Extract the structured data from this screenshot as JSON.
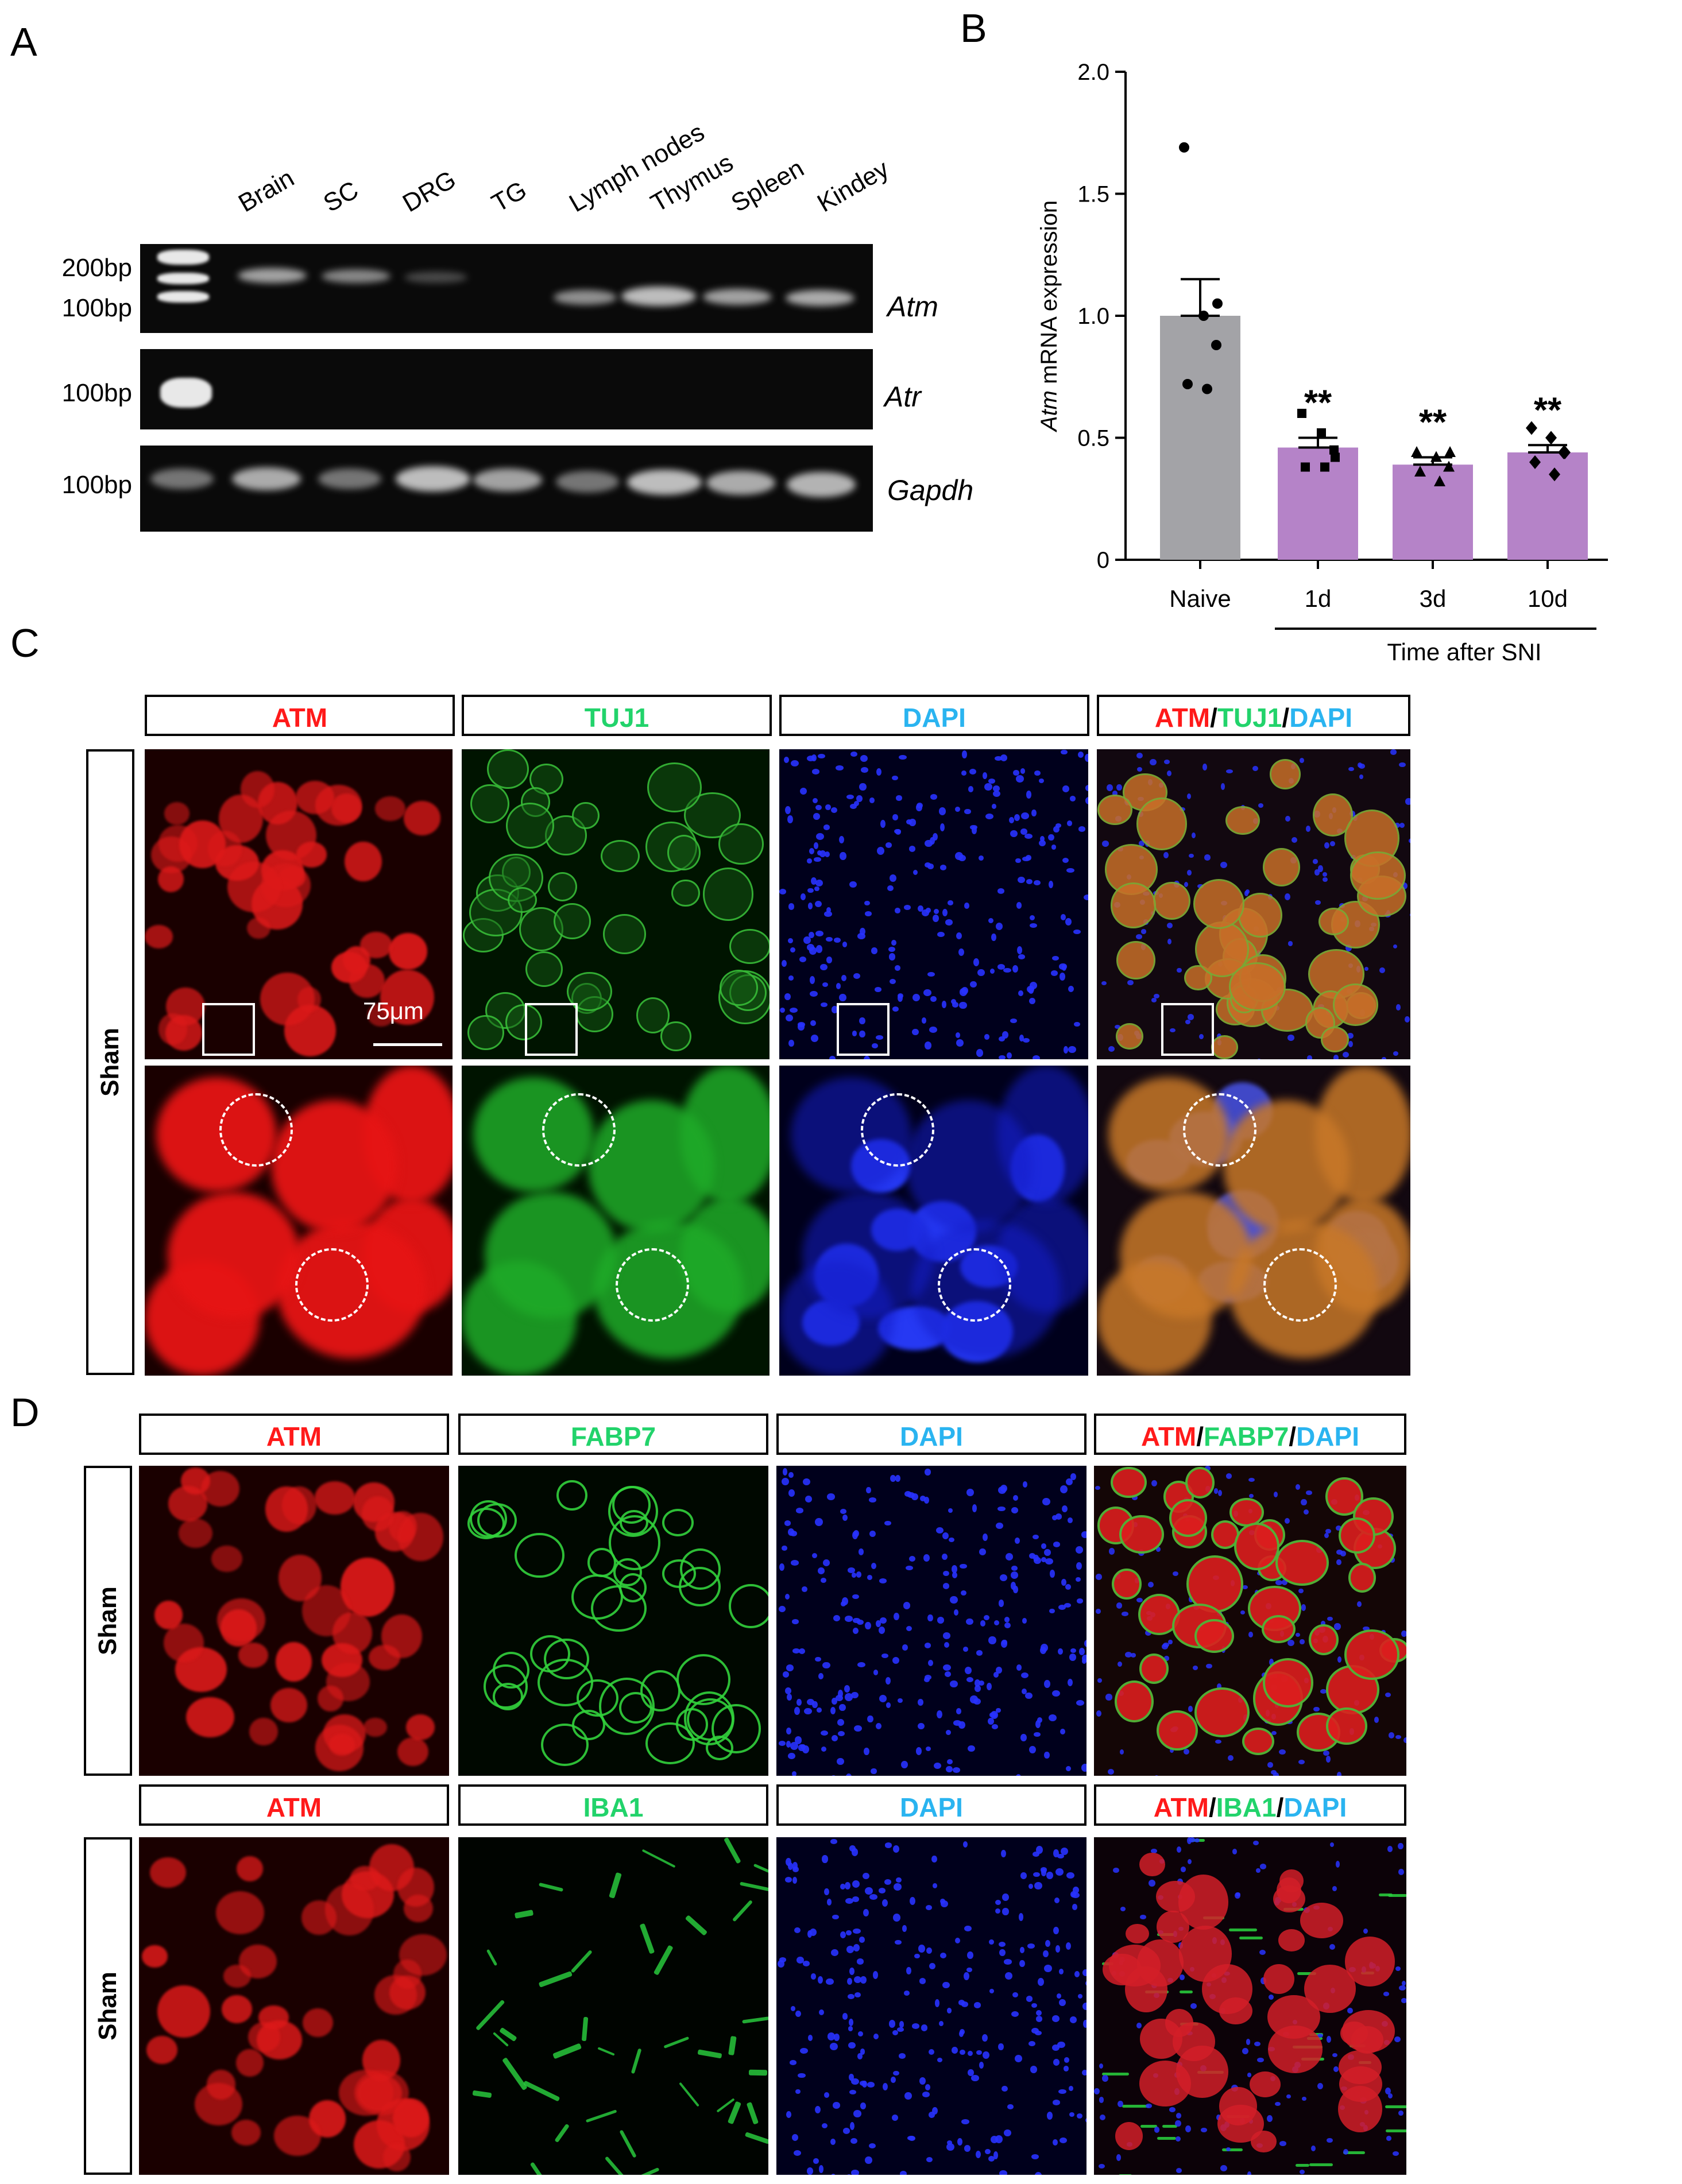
{
  "panels": {
    "a": "A",
    "b": "B",
    "c": "C",
    "d": "D"
  },
  "gel": {
    "lanes": [
      "Brain",
      "SC",
      "DRG",
      "TG",
      "Lymph nodes",
      "Thymus",
      "Spleen",
      "Kindey"
    ],
    "bp_labels": {
      "atm_top": "200bp",
      "atm_bottom": "100bp",
      "atr": "100bp",
      "gapdh": "100bp"
    },
    "genes": [
      "Atm",
      "Atr",
      "Gapdh"
    ]
  },
  "chart_data": {
    "type": "bar",
    "categories": [
      "Naive",
      "1d",
      "3d",
      "10d"
    ],
    "values": [
      1.0,
      0.46,
      0.39,
      0.44
    ],
    "errors": [
      0.15,
      0.04,
      0.03,
      0.03
    ],
    "points": [
      [
        1.69,
        1.0,
        0.88,
        0.72,
        0.7,
        1.05
      ],
      [
        0.6,
        0.52,
        0.45,
        0.38,
        0.38,
        0.42
      ],
      [
        0.44,
        0.42,
        0.38,
        0.36,
        0.32,
        0.44
      ],
      [
        0.54,
        0.5,
        0.44,
        0.4,
        0.35,
        0.44
      ]
    ],
    "significance": [
      "",
      "**",
      "**",
      "**"
    ],
    "ylabel_italic": "Atm",
    "ylabel_rest": " mRNA expression",
    "xlabel": "Time after SNI",
    "ylim": [
      0,
      2.0
    ],
    "yticks": [
      "0",
      "0.5",
      "1.0",
      "1.5",
      "2.0"
    ],
    "colors": {
      "naive": "#a3a3a7",
      "snl": "#b583c8"
    }
  },
  "panel_c": {
    "headers": {
      "atm": "ATM",
      "tuj1": "TUJ1",
      "dapi": "DAPI"
    },
    "merge": {
      "a": "ATM",
      "s1": "/",
      "b": "TUJ1",
      "s2": "/",
      "c": "DAPI"
    },
    "side_label": "Sham",
    "scale_bar": "75μm"
  },
  "panel_d": {
    "row1_headers": {
      "atm": "ATM",
      "marker": "FABP7",
      "dapi": "DAPI"
    },
    "row1_merge": {
      "a": "ATM",
      "s1": "/",
      "b": "FABP7",
      "s2": "/",
      "c": "DAPI"
    },
    "row2_headers": {
      "atm": "ATM",
      "marker": "IBA1",
      "dapi": "DAPI"
    },
    "row2_merge": {
      "a": "ATM",
      "s1": "/",
      "b": "IBA1",
      "s2": "/",
      "c": "DAPI"
    },
    "side_label_1": "Sham",
    "side_label_2": "Sham"
  },
  "colors": {
    "atm": "#ff1a1a",
    "marker": "#22d36b",
    "dapi": "#2ab4f0"
  }
}
